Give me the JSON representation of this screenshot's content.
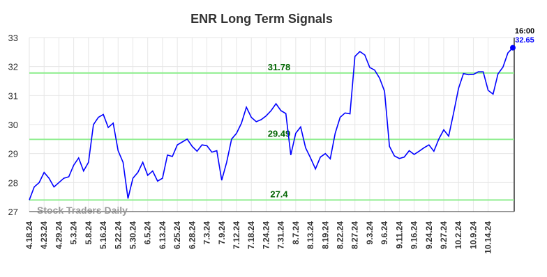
{
  "chart_data": {
    "type": "line",
    "title": "ENR Long Term Signals",
    "watermark": "Stock Traders Daily",
    "end_time": "16:00",
    "categories": [
      "4.18.24",
      null,
      null,
      "4.23.24",
      null,
      null,
      "4.29.24",
      null,
      null,
      "5.3.24",
      null,
      null,
      "5.8.24",
      null,
      null,
      "5.16.24",
      null,
      null,
      "5.22.24",
      null,
      null,
      "5.30.24",
      null,
      null,
      "6.5.24",
      null,
      null,
      "6.13.24",
      null,
      null,
      "6.25.24",
      null,
      null,
      "6.28.24",
      null,
      null,
      "7.3.24",
      null,
      null,
      "7.9.24",
      null,
      null,
      "7.12.24",
      null,
      null,
      "7.18.24",
      null,
      null,
      "7.24.24",
      null,
      null,
      "7.31.24",
      null,
      null,
      "8.7.24",
      null,
      null,
      "8.13.24",
      null,
      null,
      "8.19.24",
      null,
      null,
      "8.22.24",
      null,
      null,
      "8.27.24",
      null,
      null,
      "9.3.24",
      null,
      null,
      "9.6.24",
      null,
      null,
      "9.11.24",
      null,
      null,
      "9.16.24",
      null,
      null,
      "9.24.24",
      null,
      null,
      "9.27.24",
      null,
      null,
      "10.2.24",
      null,
      null,
      "10.9.24",
      null,
      null,
      "10.14.24",
      null,
      null,
      null,
      null,
      null
    ],
    "series": [
      {
        "color": "#0000ff",
        "values": [
          27.4,
          27.85,
          28.0,
          28.35,
          28.15,
          27.85,
          28.0,
          28.15,
          28.2,
          28.6,
          28.85,
          28.4,
          28.7,
          30.0,
          30.25,
          30.35,
          29.9,
          30.05,
          29.1,
          28.7,
          27.45,
          28.15,
          28.35,
          28.7,
          28.25,
          28.4,
          28.05,
          28.15,
          28.95,
          28.9,
          29.3,
          29.4,
          29.5,
          29.25,
          29.08,
          29.3,
          29.27,
          29.05,
          29.1,
          28.08,
          28.7,
          29.5,
          29.7,
          30.05,
          30.6,
          30.25,
          30.1,
          30.17,
          30.3,
          30.48,
          30.72,
          30.48,
          30.38,
          28.95,
          29.7,
          29.92,
          29.2,
          28.85,
          28.47,
          28.88,
          29.0,
          28.82,
          29.7,
          30.25,
          30.4,
          30.37,
          32.35,
          32.52,
          32.4,
          31.97,
          31.88,
          31.6,
          31.15,
          29.25,
          28.92,
          28.83,
          28.88,
          29.1,
          28.97,
          29.08,
          29.2,
          29.3,
          29.08,
          29.5,
          29.82,
          29.6,
          30.4,
          31.25,
          31.76,
          31.72,
          31.73,
          31.82,
          31.82,
          31.18,
          31.05,
          31.75,
          31.98,
          32.47,
          32.65
        ]
      }
    ],
    "hlines": [
      31.78,
      29.49,
      27.4
    ],
    "hline_color": "#90ee90",
    "hline_label_color": "#006400",
    "ylim": [
      27,
      33
    ],
    "yticks": [
      27,
      28,
      29,
      30,
      31,
      32,
      33
    ],
    "grid": true
  }
}
